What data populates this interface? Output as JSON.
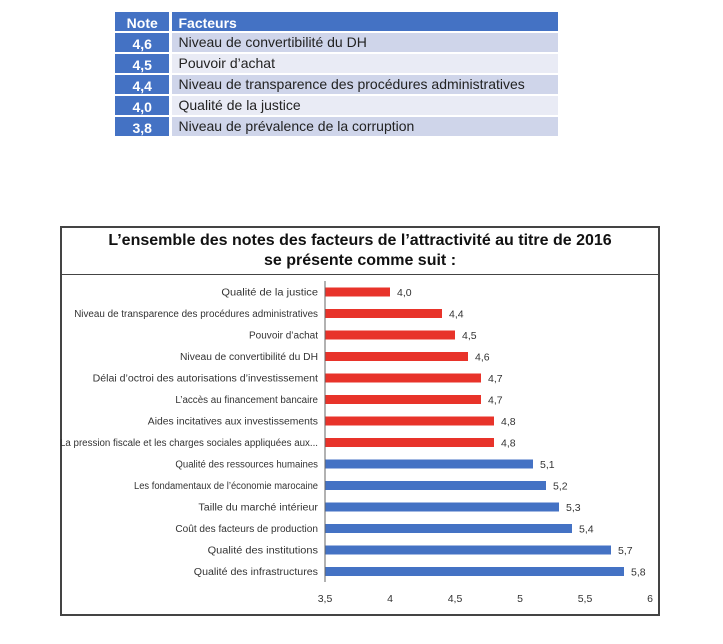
{
  "table": {
    "headers": [
      "Note",
      "Facteurs"
    ],
    "rows": [
      {
        "note": "4,6",
        "factor": "Niveau de convertibilité  du DH"
      },
      {
        "note": "4,5",
        "factor": "Pouvoir d’achat"
      },
      {
        "note": "4,4",
        "factor": "Niveau de transparence  des procédures administratives"
      },
      {
        "note": "4,0",
        "factor": "Qualité de la justice"
      },
      {
        "note": "3,8",
        "factor": "Niveau de prévalence de la corruption"
      }
    ],
    "colors": {
      "header": "#4472c4",
      "row_dark": "#cfd5ea",
      "row_light": "#e9ebf5"
    }
  },
  "chart_data": {
    "type": "bar",
    "orientation": "horizontal",
    "title": "L’ensemble des notes des facteurs de l’attractivité au titre de 2016 se présente comme suit :",
    "title_lines": [
      "L’ensemble des notes des facteurs de l’attractivité au titre de 2016",
      "se présente comme suit :"
    ],
    "categories": [
      "Qualité de la justice",
      "Niveau de transparence des procédures administratives",
      "Pouvoir d’achat",
      "Niveau de convertibilité du DH",
      "Délai d’octroi des autorisations d’investissement",
      "L’accès au financement bancaire",
      "Aides incitatives aux investissements",
      "La pression fiscale et les charges sociales appliquées aux...",
      "Qualité des ressources humaines",
      "Les fondamentaux de l’économie marocaine",
      "Taille du marché intérieur",
      "Coût des facteurs de production",
      "Qualité des institutions",
      "Qualité des infrastructures"
    ],
    "values": [
      4.0,
      4.4,
      4.5,
      4.6,
      4.7,
      4.7,
      4.8,
      4.8,
      5.1,
      5.2,
      5.3,
      5.4,
      5.7,
      5.8
    ],
    "data_labels": [
      "4,0",
      "4,4",
      "4,5",
      "4,6",
      "4,7",
      "4,7",
      "4,8",
      "4,8",
      "5,1",
      "5,2",
      "5,3",
      "5,4",
      "5,7",
      "5,8"
    ],
    "bar_colors": [
      "#e8332a",
      "#e8332a",
      "#e8332a",
      "#e8332a",
      "#e8332a",
      "#e8332a",
      "#e8332a",
      "#e8332a",
      "#4472c4",
      "#4472c4",
      "#4472c4",
      "#4472c4",
      "#4472c4",
      "#4472c4"
    ],
    "xlim": [
      3.5,
      6
    ],
    "xticks": [
      3.5,
      4,
      4.5,
      5,
      5.5,
      6
    ],
    "xtick_labels": [
      "3,5",
      "4",
      "4,5",
      "5",
      "5,5",
      "6"
    ],
    "grid": false,
    "legend": "none"
  }
}
